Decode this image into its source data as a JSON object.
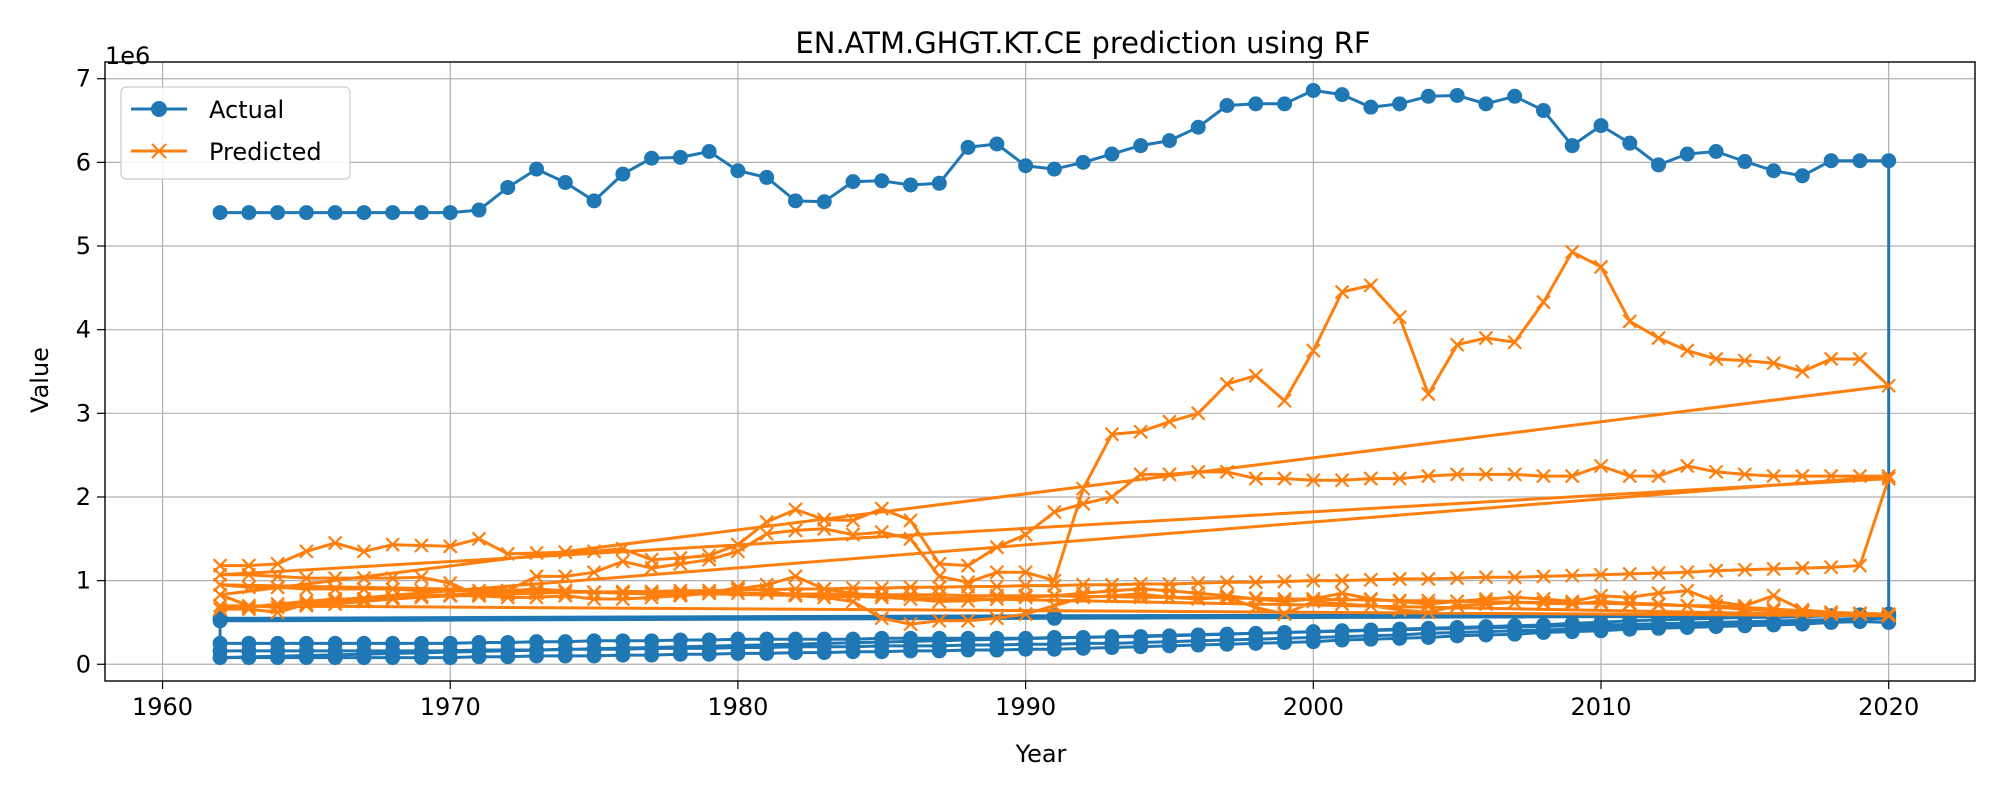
{
  "chart_data": {
    "type": "line",
    "title": "EN.ATM.GHGT.KT.CE prediction using RF",
    "xlabel": "Year",
    "ylabel": "Value",
    "y_offset_label": "1e6",
    "xlim": [
      1958,
      2023
    ],
    "ylim": [
      -0.2,
      7.2
    ],
    "x_ticks": [
      1960,
      1970,
      1980,
      1990,
      2000,
      2010,
      2020
    ],
    "y_ticks": [
      0,
      1,
      2,
      3,
      4,
      5,
      6,
      7
    ],
    "grid": true,
    "legend_position": "top-left",
    "x_start": 1962,
    "series": [
      {
        "name": "Actual",
        "color": "#1f77b4",
        "marker": "circle",
        "segments": [
          [
            5.4,
            5.4,
            5.4,
            5.4,
            5.4,
            5.4,
            5.4,
            5.4,
            5.4,
            5.43,
            5.7,
            5.92,
            5.76,
            5.54,
            5.86,
            6.05,
            6.06,
            6.13,
            5.9,
            5.82,
            5.54,
            5.53,
            5.77,
            5.78,
            5.73,
            5.75,
            6.18,
            6.22,
            5.96,
            5.92,
            6.0,
            6.1,
            6.2,
            6.26,
            6.42,
            6.68,
            6.7,
            6.7,
            6.86,
            6.81,
            6.66,
            6.7,
            6.79,
            6.8,
            6.7,
            6.79,
            6.62,
            6.2,
            6.44,
            6.23,
            5.97,
            6.1,
            6.13,
            6.01,
            5.9,
            5.84,
            6.02,
            6.02,
            6.02
          ],
          [
            0.58,
            0.55,
            0.52
          ],
          [
            0.25,
            0.25,
            0.25,
            0.25,
            0.25,
            0.25,
            0.25,
            0.25,
            0.25,
            0.26,
            0.26,
            0.27,
            0.27,
            0.28,
            0.28,
            0.28,
            0.29,
            0.29,
            0.3,
            0.3,
            0.3,
            0.3,
            0.3,
            0.31,
            0.31,
            0.31,
            0.31,
            0.31,
            0.31,
            0.32,
            0.32,
            0.33,
            0.33,
            0.34,
            0.35,
            0.36,
            0.37,
            0.38,
            0.39,
            0.4,
            0.41,
            0.42,
            0.43,
            0.44,
            0.45,
            0.46,
            0.47,
            0.49,
            0.5,
            0.52,
            0.53,
            0.54,
            0.55,
            0.56,
            0.56,
            0.57,
            0.58,
            0.59,
            0.6
          ],
          [
            0.6,
            0.58,
            0.55
          ],
          [
            0.16,
            0.16,
            0.16,
            0.16,
            0.16,
            0.16,
            0.16,
            0.16,
            0.16,
            0.17,
            0.17,
            0.17,
            0.18,
            0.18,
            0.18,
            0.19,
            0.19,
            0.19,
            0.2,
            0.2,
            0.21,
            0.21,
            0.21,
            0.22,
            0.22,
            0.22,
            0.23,
            0.23,
            0.24,
            0.24,
            0.25,
            0.25,
            0.26,
            0.27,
            0.28,
            0.29,
            0.3,
            0.31,
            0.32,
            0.33,
            0.34,
            0.35,
            0.37,
            0.38,
            0.39,
            0.4,
            0.41,
            0.42,
            0.44,
            0.45,
            0.46,
            0.47,
            0.48,
            0.49,
            0.5,
            0.51,
            0.52,
            0.53,
            0.55
          ],
          [
            0.08,
            0.08,
            0.08,
            0.08,
            0.08,
            0.08,
            0.08,
            0.08,
            0.08,
            0.09,
            0.09,
            0.1,
            0.1,
            0.1,
            0.11,
            0.11,
            0.12,
            0.12,
            0.13,
            0.13,
            0.14,
            0.14,
            0.15,
            0.15,
            0.16,
            0.16,
            0.17,
            0.17,
            0.18,
            0.18,
            0.19,
            0.2,
            0.21,
            0.22,
            0.23,
            0.24,
            0.25,
            0.26,
            0.27,
            0.29,
            0.3,
            0.31,
            0.32,
            0.34,
            0.35,
            0.36,
            0.38,
            0.39,
            0.4,
            0.42,
            0.43,
            0.44,
            0.45,
            0.46,
            0.47,
            0.48,
            0.5,
            0.51,
            0.5
          ]
        ]
      },
      {
        "name": "Predicted",
        "color": "#ff7f0e",
        "marker": "x",
        "segments": [
          [
            1.18,
            1.18,
            1.2,
            1.35,
            1.45,
            1.35,
            1.43,
            1.42,
            1.41,
            1.5,
            1.32,
            1.33,
            1.34,
            1.35,
            1.38,
            1.25,
            1.27,
            1.3,
            1.43,
            1.7,
            1.85,
            1.73,
            1.72,
            1.86,
            1.72,
            1.2,
            1.18,
            1.4,
            1.55,
            1.82,
            1.92,
            2.0,
            2.27,
            2.27,
            2.3,
            2.3,
            2.22,
            2.22,
            2.2,
            2.2,
            2.22,
            2.22,
            2.25,
            2.27,
            2.27,
            2.27,
            2.25,
            2.25,
            2.37,
            2.25,
            2.25,
            2.37,
            2.3,
            2.27,
            2.25,
            2.25,
            2.25,
            2.25,
            2.25
          ],
          [
            0.66,
            0.66,
            0.62,
            0.72,
            0.72,
            0.75,
            0.78,
            0.8,
            0.82,
            0.83,
            0.84,
            0.85,
            0.86,
            0.86,
            0.87,
            0.87,
            0.88,
            0.88,
            0.89,
            0.89,
            0.9,
            0.9,
            0.91,
            0.91,
            0.92,
            0.92,
            0.93,
            0.93,
            0.94,
            0.94,
            0.95,
            0.95,
            0.96,
            0.96,
            0.97,
            0.98,
            0.98,
            0.99,
            1.0,
            1.0,
            1.01,
            1.02,
            1.02,
            1.03,
            1.04,
            1.04,
            1.05,
            1.06,
            1.07,
            1.08,
            1.09,
            1.1,
            1.12,
            1.13,
            1.14,
            1.15,
            1.16,
            1.18,
            2.22
          ],
          [
            1.07,
            1.07,
            1.05,
            1.03,
            1.03,
            1.03,
            1.03,
            1.04,
            0.97,
            0.82,
            0.88,
            1.05,
            1.05,
            1.1,
            1.23,
            1.15,
            1.2,
            1.25,
            1.35,
            1.56,
            1.6,
            1.62,
            1.55,
            1.58,
            1.5,
            1.05,
            0.98,
            1.1,
            1.1,
            1.0,
            2.1,
            2.75,
            2.78,
            2.9,
            3.0,
            3.35,
            3.45,
            3.15,
            3.75,
            4.45,
            4.53,
            4.15,
            3.23,
            3.82,
            3.9,
            3.85,
            4.33,
            4.93,
            4.75,
            4.1,
            3.9,
            3.75,
            3.65,
            3.63,
            3.6,
            3.5,
            3.65,
            3.65,
            3.33
          ],
          [
            0.83,
            0.7,
            0.68,
            0.7,
            0.75,
            0.78,
            0.8,
            0.82,
            0.83,
            0.85,
            0.88,
            0.9,
            0.88,
            0.86,
            0.85,
            0.84,
            0.83,
            0.85,
            0.9,
            0.95,
            1.05,
            0.9,
            0.85,
            0.8,
            0.78,
            0.75,
            0.76,
            0.78,
            0.8,
            0.82,
            0.85,
            0.88,
            0.9,
            0.88,
            0.85,
            0.82,
            0.78,
            0.75,
            0.78,
            0.85,
            0.78,
            0.75,
            0.72,
            0.75,
            0.78,
            0.8,
            0.78,
            0.75,
            0.82,
            0.8,
            0.85,
            0.88,
            0.75,
            0.7,
            0.82,
            0.65,
            0.62,
            0.6,
            0.58
          ],
          [
            0.7,
            0.68,
            0.72,
            0.75,
            0.78,
            0.78,
            0.8,
            0.8,
            0.82,
            0.82,
            0.8,
            0.8,
            0.82,
            0.78,
            0.78,
            0.8,
            0.82,
            0.85,
            0.92,
            0.88,
            0.82,
            0.8,
            0.75,
            0.55,
            0.48,
            0.52,
            0.52,
            0.55,
            0.6,
            0.7,
            0.8,
            0.82,
            0.84,
            0.8,
            0.78,
            0.8,
            0.68,
            0.6,
            0.75,
            0.72,
            0.7,
            0.65,
            0.62,
            0.7,
            0.72,
            0.74,
            0.73,
            0.72,
            0.75,
            0.73,
            0.72,
            0.7,
            0.68,
            0.66,
            0.64,
            0.62,
            0.6,
            0.6,
            0.58
          ],
          [
            0.95,
            0.92,
            0.92,
            0.9,
            0.9,
            0.9,
            0.9,
            0.88,
            0.88,
            0.88,
            0.87,
            0.87,
            0.86,
            0.86,
            0.85,
            0.85,
            0.85,
            0.85,
            0.85,
            0.85,
            0.84,
            0.84,
            0.84,
            0.83,
            0.83,
            0.83,
            0.82,
            0.82,
            0.82,
            0.82,
            0.81,
            0.81,
            0.8,
            0.8,
            0.8,
            0.79,
            0.79,
            0.78,
            0.78,
            0.77,
            0.77,
            0.76,
            0.76,
            0.75,
            0.75,
            0.74,
            0.74,
            0.73,
            0.73,
            0.72,
            0.71,
            0.7,
            0.7,
            0.68,
            0.66,
            0.64,
            0.62,
            0.61,
            0.6
          ]
        ]
      }
    ]
  }
}
